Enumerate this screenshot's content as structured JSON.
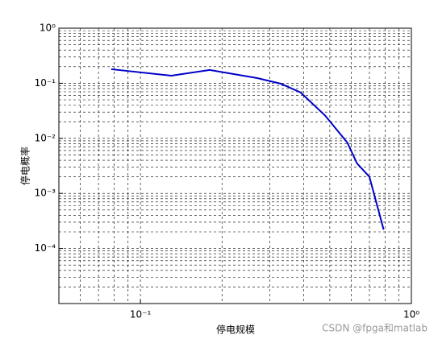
{
  "chart_data": {
    "type": "line",
    "xlabel": "停电规模",
    "ylabel": "停电概率",
    "x_log": true,
    "y_log": true,
    "grid": true,
    "minor_grid": true,
    "xlim": [
      0.05,
      1
    ],
    "ylim": [
      1e-05,
      1
    ],
    "xticks": [
      {
        "value": 0.1,
        "label": "10⁻¹"
      },
      {
        "value": 1,
        "label": "10⁰"
      }
    ],
    "yticks": [
      {
        "value": 1,
        "label": "10⁰"
      },
      {
        "value": 0.1,
        "label": "10⁻¹"
      },
      {
        "value": 0.01,
        "label": "10⁻²"
      },
      {
        "value": 0.001,
        "label": "10⁻³"
      },
      {
        "value": 0.0001,
        "label": "10⁻⁴"
      }
    ],
    "series": [
      {
        "color": "#0000c8",
        "x": [
          0.078,
          0.13,
          0.18,
          0.27,
          0.33,
          0.39,
          0.48,
          0.58,
          0.63,
          0.7,
          0.79
        ],
        "values": [
          0.18,
          0.137,
          0.174,
          0.124,
          0.098,
          0.068,
          0.026,
          0.0084,
          0.0035,
          0.002,
          0.00022
        ]
      }
    ],
    "watermark": "CSDN @fpga和matlab"
  }
}
